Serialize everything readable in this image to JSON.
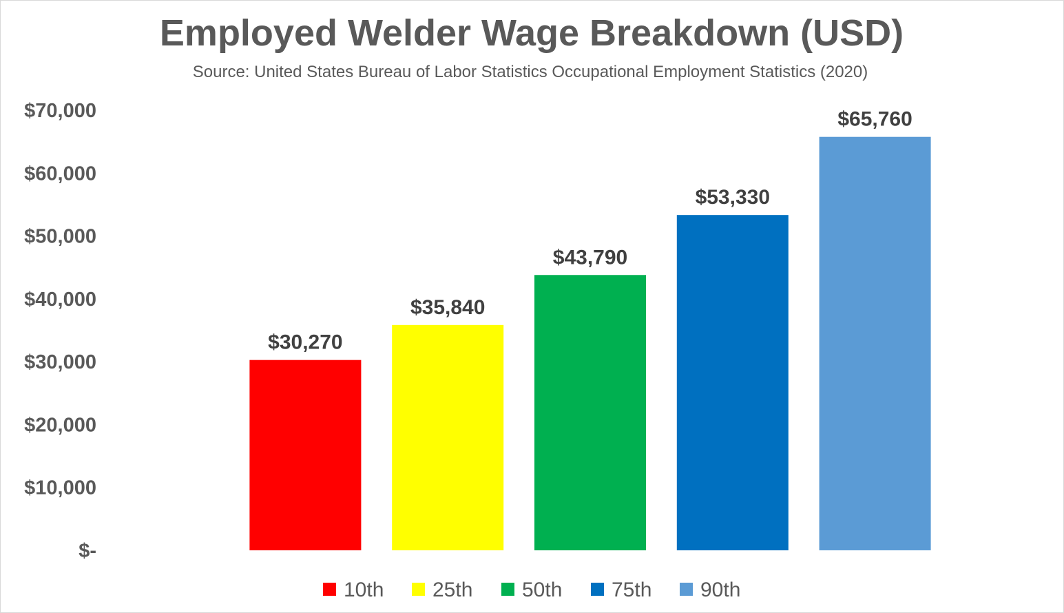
{
  "chart_data": {
    "type": "bar",
    "title": "Employed Welder Wage Breakdown (USD)",
    "subtitle": "Source: United States Bureau of Labor Statistics Occupational Employment Statistics (2020)",
    "categories": [
      "10th",
      "25th",
      "50th",
      "75th",
      "90th"
    ],
    "values": [
      30270,
      35840,
      43790,
      53330,
      65760
    ],
    "data_labels": [
      "$30,270",
      "$35,840",
      "$43,790",
      "$53,330",
      "$65,760"
    ],
    "colors": [
      "#FF0000",
      "#FFFF00",
      "#00B050",
      "#0070C0",
      "#5B9BD5"
    ],
    "ylim": [
      0,
      70000
    ],
    "yticks": [
      0,
      10000,
      20000,
      30000,
      40000,
      50000,
      60000,
      70000
    ],
    "ytick_labels": [
      "$-",
      "$10,000",
      "$20,000",
      "$30,000",
      "$40,000",
      "$50,000",
      "$60,000",
      "$70,000"
    ],
    "xlabel": "",
    "ylabel": "",
    "grid": false,
    "legend_position": "bottom"
  }
}
